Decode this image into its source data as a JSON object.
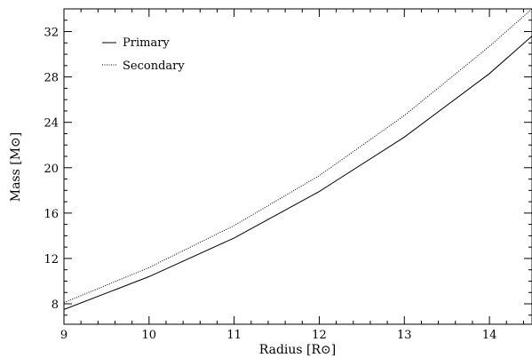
{
  "chart_data": {
    "type": "line",
    "xlabel": "Radius [R⊙]",
    "ylabel": "Mass [M⊙]",
    "xlim": [
      9,
      14.5
    ],
    "ylim": [
      6.2,
      34.0
    ],
    "xticks": [
      9,
      10,
      11,
      12,
      13,
      14
    ],
    "yticks": [
      8,
      12,
      16,
      20,
      24,
      28,
      32
    ],
    "grid": false,
    "legend_position": "top-left",
    "series": [
      {
        "name": "Primary",
        "line_style": "solid",
        "x": [
          9,
          10,
          11,
          12,
          13,
          14,
          14.5
        ],
        "y": [
          7.5,
          10.4,
          13.8,
          17.9,
          22.7,
          28.3,
          31.6
        ]
      },
      {
        "name": "Secondary",
        "line_style": "dotted",
        "x": [
          9,
          10,
          11,
          12,
          13,
          14,
          14.5
        ],
        "y": [
          8.1,
          11.2,
          14.9,
          19.3,
          24.6,
          30.7,
          34.0
        ]
      }
    ]
  }
}
